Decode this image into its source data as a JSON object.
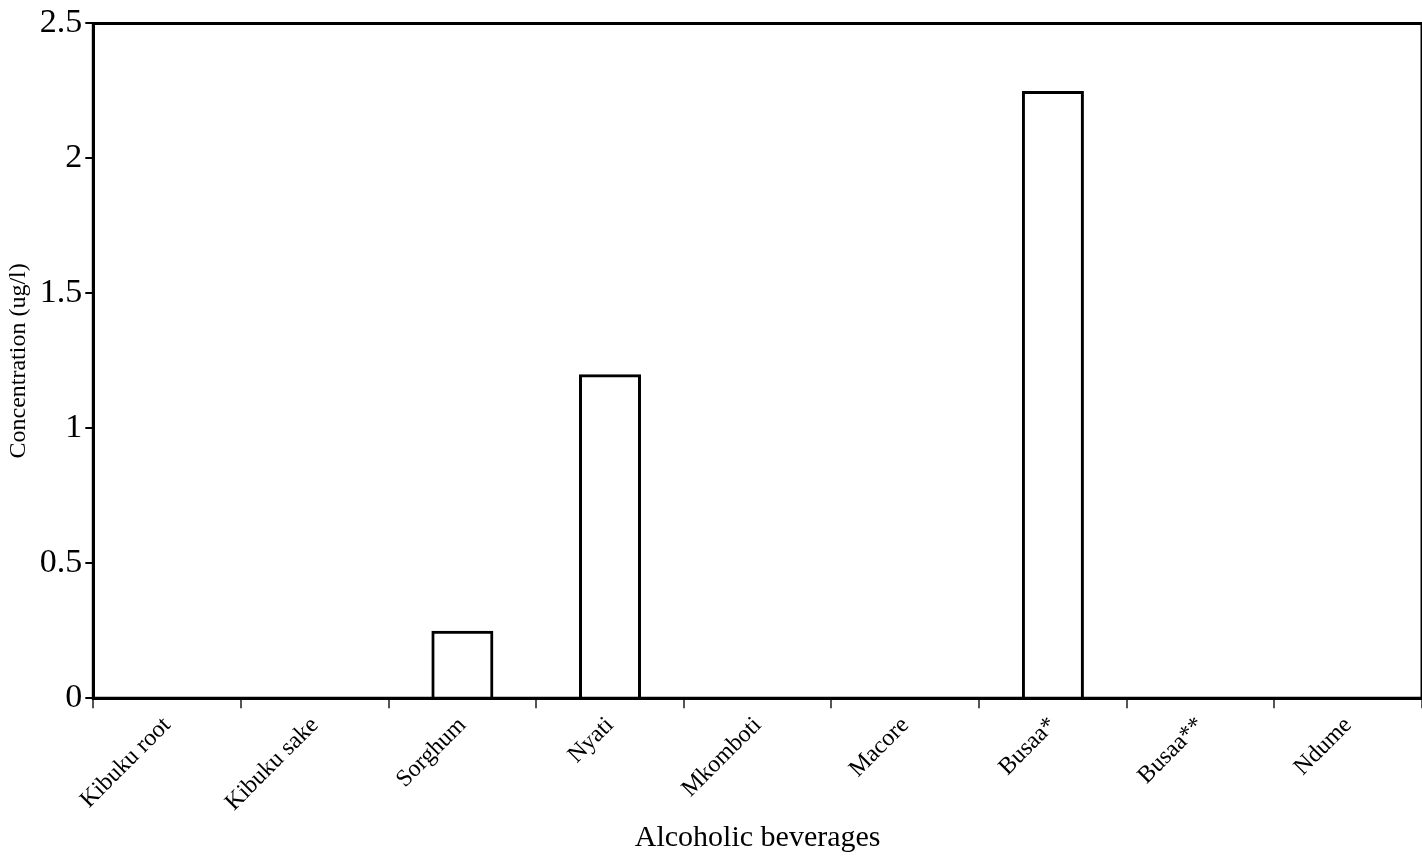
{
  "chart_data": {
    "type": "bar",
    "xlabel": "Alcoholic beverages",
    "ylabel": "Concentration (ug/l)",
    "categories": [
      "Kibuku root",
      "Kibuku sake",
      "Sorghum",
      "Nyati",
      "Mkomboti",
      "Macore",
      "Busaa*",
      "Busaa**",
      "Ndume"
    ],
    "values": [
      0,
      0,
      0.25,
      1.2,
      0,
      0,
      2.25,
      0,
      0
    ],
    "color": "#000000",
    "ylim": [
      0,
      2.5
    ],
    "yticks": [
      0,
      0.5,
      1,
      1.5,
      2,
      2.5
    ],
    "grid": false,
    "legend": false
  }
}
